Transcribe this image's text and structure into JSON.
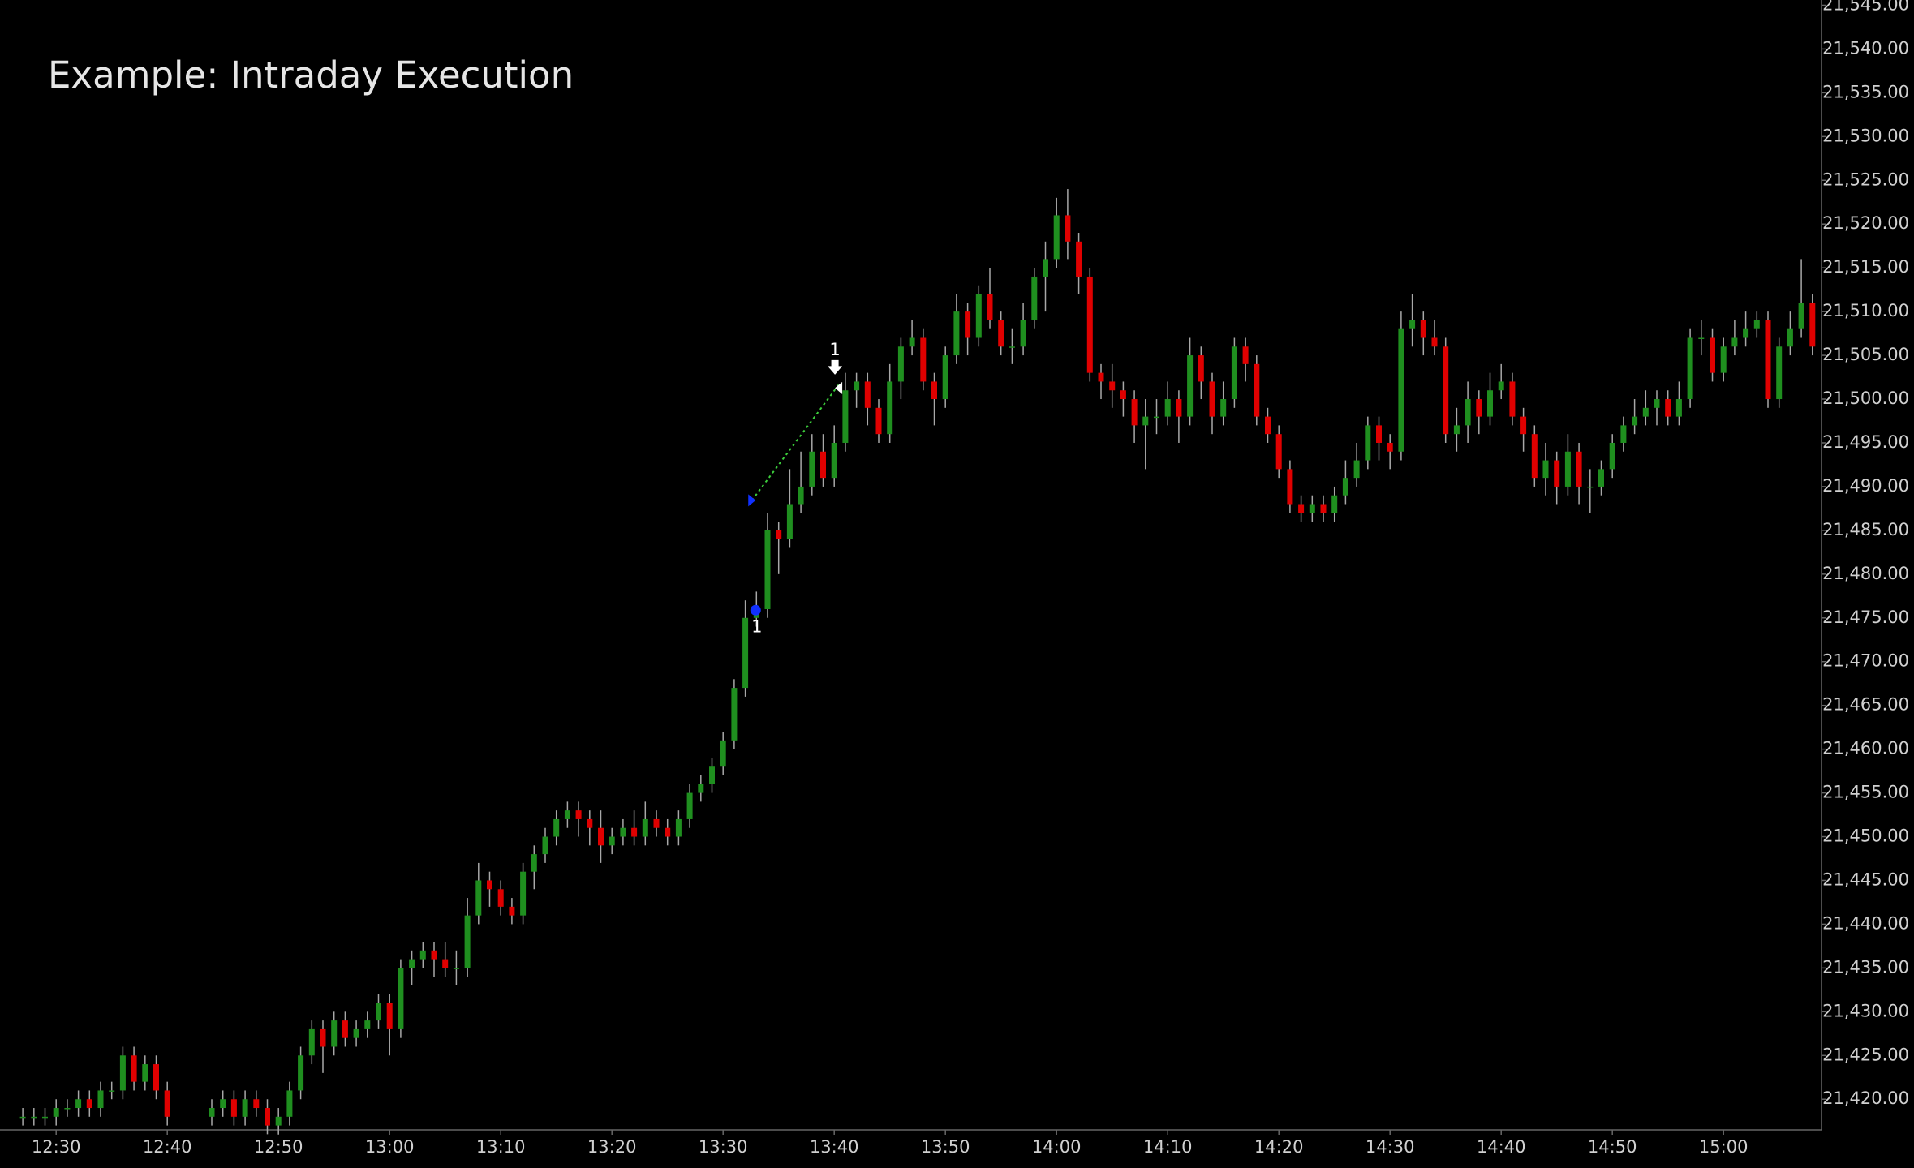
{
  "chart_data": {
    "type": "candlestick",
    "title": "Example: Intraday Execution",
    "categories": [
      null,
      null,
      null,
      "12:30",
      null,
      null,
      null,
      null,
      null,
      null,
      null,
      null,
      null,
      "12:40",
      null,
      null,
      null,
      null,
      null,
      null,
      null,
      null,
      null,
      "12:50",
      null,
      null,
      null,
      null,
      null,
      null,
      null,
      null,
      null,
      "13:00",
      null,
      null,
      null,
      null,
      null,
      null,
      null,
      null,
      null,
      "13:10",
      null,
      null,
      null,
      null,
      null,
      null,
      null,
      null,
      null,
      "13:20",
      null,
      null,
      null,
      null,
      null,
      null,
      null,
      null,
      null,
      "13:30",
      null,
      null,
      null,
      null,
      null,
      null,
      null,
      null,
      null,
      "13:40",
      null,
      null,
      null,
      null,
      null,
      null,
      null,
      null,
      null,
      "13:50",
      null,
      null,
      null,
      null,
      null,
      null,
      null,
      null,
      null,
      "14:00",
      null,
      null,
      null,
      null,
      null,
      null,
      null,
      null,
      null,
      "14:10",
      null,
      null,
      null,
      null,
      null,
      null,
      null,
      null,
      null,
      "14:20",
      null,
      null,
      null,
      null,
      null,
      null,
      null,
      null,
      null,
      "14:30",
      null,
      null,
      null,
      null,
      null,
      null,
      null,
      null,
      null,
      "14:40",
      null,
      null,
      null,
      null,
      null,
      null,
      null,
      null,
      null,
      "14:50",
      null,
      null,
      null,
      null,
      null,
      null,
      null,
      null,
      null,
      "15:00",
      null,
      null,
      null,
      null,
      null,
      null,
      null,
      null
    ],
    "open": [
      21418,
      21418,
      21418,
      21418,
      21419,
      21419,
      21420,
      21419,
      21421,
      21421,
      21425,
      21422,
      21424,
      21421,
      null,
      null,
      null,
      21418,
      21419,
      21420,
      21418,
      21420,
      21419,
      21417,
      21418,
      21421,
      21425,
      21428,
      21426,
      21429,
      21427,
      21428,
      21429,
      21431,
      21428,
      21435,
      21436,
      21437,
      21436,
      21435,
      21435,
      21441,
      21445,
      21444,
      21442,
      21441,
      21446,
      21448,
      21450,
      21452,
      21453,
      21452,
      21451,
      21449,
      21450,
      21451,
      21450,
      21452,
      21451,
      21450,
      21452,
      21455,
      21456,
      21458,
      21461,
      21467,
      21475,
      21476,
      21485,
      21484,
      21488,
      21490,
      21494,
      21491,
      21495,
      21501,
      21502,
      21499,
      21496,
      21502,
      21506,
      21507,
      21502,
      21500,
      21505,
      21510,
      21507,
      21512,
      21509,
      21506,
      21506,
      21509,
      21514,
      21516,
      21521,
      21518,
      21514,
      21503,
      21502,
      21501,
      21500,
      21497,
      21498,
      21498,
      21500,
      21498,
      21505,
      21502,
      21498,
      21500,
      21506,
      21504,
      21498,
      21496,
      21492,
      21488,
      21487,
      21488,
      21487,
      21489,
      21491,
      21493,
      21497,
      21495,
      21494,
      21508,
      21509,
      21507,
      21506,
      21496,
      21497,
      21500,
      21498,
      21501,
      21502,
      21498,
      21496,
      21491,
      21493,
      21490,
      21494,
      21490,
      21490,
      21492,
      21495,
      21497,
      21498,
      21499,
      21500,
      21498,
      21500,
      21507,
      21507,
      21503,
      21506,
      21507,
      21508,
      21509,
      21500,
      21506,
      21508,
      21511
    ],
    "high": [
      21419,
      21419,
      21419,
      21420,
      21420,
      21421,
      21421,
      21422,
      21422,
      21426,
      21426,
      21425,
      21425,
      21422,
      null,
      null,
      null,
      21420,
      21421,
      21421,
      21421,
      21421,
      21420,
      21419,
      21422,
      21426,
      21429,
      21429,
      21430,
      21430,
      21429,
      21430,
      21432,
      21432,
      21436,
      21437,
      21438,
      21438,
      21438,
      21437,
      21443,
      21447,
      21446,
      21445,
      21443,
      21447,
      21449,
      21451,
      21453,
      21454,
      21454,
      21453,
      21453,
      21451,
      21452,
      21453,
      21454,
      21453,
      21452,
      21453,
      21456,
      21457,
      21459,
      21462,
      21468,
      21477,
      21478,
      21487,
      21486,
      21492,
      21494,
      21496,
      21496,
      21497,
      21503,
      21503,
      21503,
      21500,
      21504,
      21507,
      21509,
      21508,
      21503,
      21506,
      21512,
      21511,
      21513,
      21515,
      21510,
      21508,
      21511,
      21515,
      21518,
      21523,
      21524,
      21519,
      21515,
      21504,
      21504,
      21502,
      21501,
      21500,
      21500,
      21502,
      21501,
      21507,
      21506,
      21503,
      21502,
      21507,
      21507,
      21505,
      21499,
      21497,
      21493,
      21489,
      21489,
      21489,
      21490,
      21493,
      21495,
      21498,
      21498,
      21496,
      21510,
      21512,
      21510,
      21509,
      21507,
      21499,
      21502,
      21501,
      21503,
      21504,
      21503,
      21499,
      21497,
      21495,
      21494,
      21496,
      21495,
      21492,
      21493,
      21496,
      21498,
      21500,
      21501,
      21501,
      21501,
      21502,
      21508,
      21509,
      21508,
      21507,
      21509,
      21510,
      21510,
      21510,
      21507,
      21510,
      21516,
      21512
    ],
    "low": [
      21417,
      21417,
      21417,
      21417,
      21418,
      21418,
      21418,
      21418,
      21420,
      21420,
      21421,
      21421,
      21420,
      21417,
      null,
      null,
      null,
      21417,
      21418,
      21417,
      21417,
      21418,
      21416,
      21416,
      21417,
      21420,
      21424,
      21423,
      21425,
      21426,
      21426,
      21427,
      21428,
      21425,
      21427,
      21433,
      21435,
      21434,
      21434,
      21433,
      21434,
      21440,
      21442,
      21441,
      21440,
      21440,
      21444,
      21447,
      21449,
      21451,
      21450,
      21449,
      21447,
      21448,
      21449,
      21449,
      21449,
      21450,
      21449,
      21449,
      21451,
      21454,
      21455,
      21457,
      21460,
      21466,
      21474,
      21475,
      21480,
      21483,
      21487,
      21489,
      21490,
      21490,
      21494,
      21499,
      21497,
      21495,
      21495,
      21500,
      21505,
      21501,
      21497,
      21499,
      21504,
      21505,
      21506,
      21508,
      21505,
      21504,
      21505,
      21508,
      21510,
      21515,
      21516,
      21512,
      21502,
      21500,
      21499,
      21498,
      21495,
      21492,
      21496,
      21497,
      21495,
      21497,
      21500,
      21496,
      21497,
      21499,
      21502,
      21497,
      21495,
      21491,
      21487,
      21486,
      21486,
      21486,
      21486,
      21488,
      21490,
      21492,
      21493,
      21492,
      21493,
      21506,
      21505,
      21505,
      21495,
      21494,
      21495,
      21496,
      21497,
      21500,
      21497,
      21494,
      21490,
      21489,
      21488,
      21489,
      21488,
      21487,
      21489,
      21491,
      21494,
      21496,
      21497,
      21497,
      21497,
      21497,
      21499,
      21505,
      21502,
      21502,
      21505,
      21506,
      21507,
      21499,
      21499,
      21505,
      21507,
      21505
    ],
    "close": [
      21418,
      21418,
      21418,
      21419,
      21419,
      21420,
      21419,
      21421,
      21421,
      21425,
      21422,
      21424,
      21421,
      21418,
      null,
      null,
      null,
      21419,
      21420,
      21418,
      21420,
      21419,
      21417,
      21418,
      21421,
      21425,
      21428,
      21426,
      21429,
      21427,
      21428,
      21429,
      21431,
      21428,
      21435,
      21436,
      21437,
      21436,
      21435,
      21435,
      21441,
      21445,
      21444,
      21442,
      21441,
      21446,
      21448,
      21450,
      21452,
      21453,
      21452,
      21451,
      21449,
      21450,
      21451,
      21450,
      21452,
      21451,
      21450,
      21452,
      21455,
      21456,
      21458,
      21461,
      21467,
      21475,
      21476,
      21485,
      21484,
      21488,
      21490,
      21494,
      21491,
      21495,
      21501,
      21502,
      21499,
      21496,
      21502,
      21506,
      21507,
      21502,
      21500,
      21505,
      21510,
      21507,
      21512,
      21509,
      21506,
      21506,
      21509,
      21514,
      21516,
      21521,
      21518,
      21514,
      21503,
      21502,
      21501,
      21500,
      21497,
      21498,
      21498,
      21500,
      21498,
      21505,
      21502,
      21498,
      21500,
      21506,
      21504,
      21498,
      21496,
      21492,
      21488,
      21487,
      21488,
      21487,
      21489,
      21491,
      21493,
      21497,
      21495,
      21494,
      21508,
      21509,
      21507,
      21506,
      21496,
      21497,
      21500,
      21498,
      21501,
      21502,
      21498,
      21496,
      21491,
      21493,
      21490,
      21494,
      21490,
      21490,
      21492,
      21495,
      21497,
      21498,
      21499,
      21500,
      21498,
      21500,
      21507,
      21507,
      21503,
      21506,
      21507,
      21508,
      21509,
      21500,
      21506,
      21508,
      21511,
      21506
    ],
    "up_color": "#1f8f1f",
    "down_color": "#e00000",
    "wick_color": "#a8a8a8",
    "ylim": [
      21416.5,
      21545.6
    ],
    "yticks": [
      {
        "value": 21420,
        "label": "21,420.00"
      },
      {
        "value": 21425,
        "label": "21,425.00"
      },
      {
        "value": 21430,
        "label": "21,430.00"
      },
      {
        "value": 21435,
        "label": "21,435.00"
      },
      {
        "value": 21440,
        "label": "21,440.00"
      },
      {
        "value": 21445,
        "label": "21,445.00"
      },
      {
        "value": 21450,
        "label": "21,450.00"
      },
      {
        "value": 21455,
        "label": "21,455.00"
      },
      {
        "value": 21460,
        "label": "21,460.00"
      },
      {
        "value": 21465,
        "label": "21,465.00"
      },
      {
        "value": 21470,
        "label": "21,470.00"
      },
      {
        "value": 21475,
        "label": "21,475.00"
      },
      {
        "value": 21480,
        "label": "21,480.00"
      },
      {
        "value": 21485,
        "label": "21,485.00"
      },
      {
        "value": 21490,
        "label": "21,490.00"
      },
      {
        "value": 21495,
        "label": "21,495.00"
      },
      {
        "value": 21500,
        "label": "21,500.00"
      },
      {
        "value": 21505,
        "label": "21,505.00"
      },
      {
        "value": 21510,
        "label": "21,510.00"
      },
      {
        "value": 21515,
        "label": "21,515.00"
      },
      {
        "value": 21520,
        "label": "21,520.00"
      },
      {
        "value": 21525,
        "label": "21,525.00"
      },
      {
        "value": 21530,
        "label": "21,530.00"
      },
      {
        "value": 21535,
        "label": "21,535.00"
      },
      {
        "value": 21540,
        "label": "21,540.00"
      },
      {
        "value": 21545,
        "label": "21,545.00"
      }
    ],
    "grid": false,
    "annotations": [
      {
        "text": "1"
      },
      {
        "text": "1"
      }
    ]
  }
}
